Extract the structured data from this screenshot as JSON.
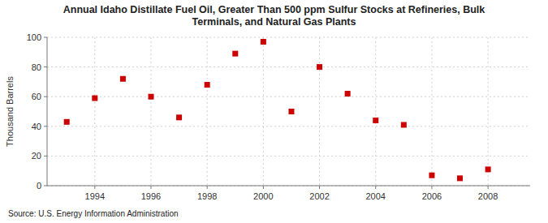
{
  "chart_data": {
    "type": "scatter",
    "title": "Annual Idaho Distillate Fuel Oil, Greater Than 500 ppm Sulfur Stocks at Refineries, Bulk\nTerminals, and Natural Gas Plants",
    "ylabel": "Thousand Barrels",
    "annotations": [
      "Source: U.S. Energy Information Administration"
    ],
    "x": [
      1993,
      1994,
      1995,
      1996,
      1997,
      1998,
      1999,
      2000,
      2001,
      2002,
      2003,
      2004,
      2005,
      2006,
      2007,
      2008
    ],
    "values": [
      43,
      59,
      72,
      60,
      46,
      68,
      89,
      97,
      50,
      80,
      62,
      44,
      41,
      7,
      5,
      11
    ],
    "color": "#cc0000",
    "marker": "square",
    "xlim": [
      1992.3,
      2009.5
    ],
    "ylim": [
      0,
      100
    ],
    "xticks": [
      1994,
      1996,
      1998,
      2000,
      2002,
      2004,
      2006,
      2008
    ],
    "yticks": [
      0,
      20,
      40,
      60,
      80,
      100
    ],
    "grid": true
  }
}
